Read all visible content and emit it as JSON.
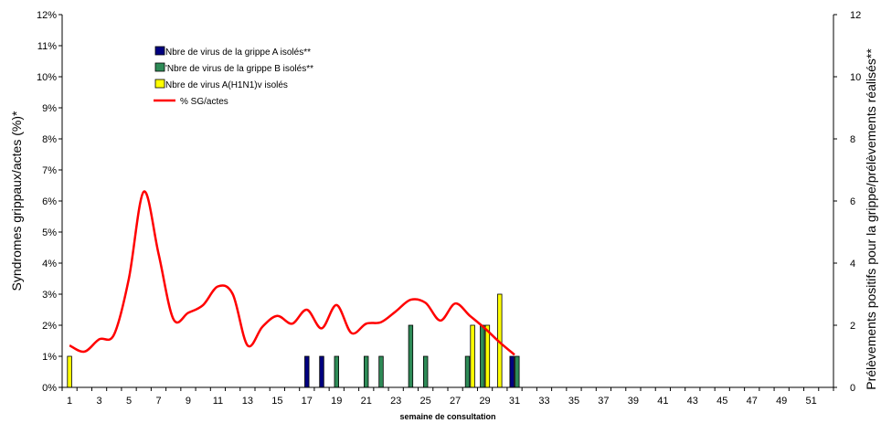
{
  "chart_data": {
    "type": "bar",
    "xlabel": "semaine de consultation",
    "ylabel_left": "Syndromes grippaux/actes (%)*",
    "ylabel_right": "Prélèvements positifs pour la grippe/prélèvements réalisés**",
    "x_min": 1,
    "x_max": 52,
    "x_tick_values": [
      1,
      3,
      5,
      7,
      9,
      11,
      13,
      15,
      17,
      19,
      21,
      23,
      25,
      27,
      29,
      31,
      33,
      35,
      37,
      39,
      41,
      43,
      45,
      47,
      49,
      51
    ],
    "x_tick_labels": [
      "1",
      "3",
      "5",
      "7",
      "9",
      "11",
      "13",
      "15",
      "17",
      "19",
      "21",
      "23",
      "25",
      "27",
      "29",
      "31",
      "33",
      "35",
      "37",
      "39",
      "41",
      "43",
      "45",
      "47",
      "49",
      "51"
    ],
    "ylim_left": [
      0,
      12
    ],
    "yticks_left": [
      "0%",
      "1%",
      "2%",
      "3%",
      "4%",
      "5%",
      "6%",
      "7%",
      "8%",
      "9%",
      "10%",
      "11%",
      "12%"
    ],
    "ylim_right": [
      0,
      12
    ],
    "yticks_right": [
      "0",
      "2",
      "4",
      "6",
      "8",
      "10",
      "12"
    ],
    "legend_position": "top-left",
    "series": [
      {
        "name": "Nbre de virus de la grippe A  isolés**",
        "kind": "bar",
        "axis": "right",
        "color": "#000080",
        "points": [
          [
            17,
            1
          ],
          [
            18,
            1
          ],
          [
            31,
            1
          ]
        ]
      },
      {
        "name": "'Nbre de virus de la grippe B isolés**",
        "kind": "bar",
        "axis": "right",
        "color": "#2e8b57",
        "points": [
          [
            19,
            1
          ],
          [
            21,
            1
          ],
          [
            22,
            1
          ],
          [
            24,
            2
          ],
          [
            25,
            1
          ],
          [
            28,
            1
          ],
          [
            29,
            2
          ],
          [
            31,
            1
          ]
        ]
      },
      {
        "name": "Nbre de virus A(H1N1)v isolés",
        "kind": "bar",
        "axis": "right",
        "color": "#ffff00",
        "points": [
          [
            1,
            1
          ],
          [
            28,
            2
          ],
          [
            29,
            2
          ],
          [
            30,
            3
          ]
        ]
      },
      {
        "name": "% SG/actes",
        "kind": "line",
        "axis": "left",
        "color": "#ff0000",
        "points": [
          [
            1,
            1.35
          ],
          [
            2,
            1.15
          ],
          [
            3,
            1.55
          ],
          [
            4,
            1.7
          ],
          [
            5,
            3.5
          ],
          [
            6,
            6.3
          ],
          [
            7,
            4.3
          ],
          [
            8,
            2.2
          ],
          [
            9,
            2.4
          ],
          [
            10,
            2.65
          ],
          [
            11,
            3.25
          ],
          [
            12,
            3.0
          ],
          [
            13,
            1.35
          ],
          [
            14,
            1.95
          ],
          [
            15,
            2.3
          ],
          [
            16,
            2.05
          ],
          [
            17,
            2.5
          ],
          [
            18,
            1.9
          ],
          [
            19,
            2.65
          ],
          [
            20,
            1.75
          ],
          [
            21,
            2.05
          ],
          [
            22,
            2.1
          ],
          [
            23,
            2.45
          ],
          [
            24,
            2.82
          ],
          [
            25,
            2.72
          ],
          [
            26,
            2.15
          ],
          [
            27,
            2.7
          ],
          [
            28,
            2.3
          ],
          [
            29,
            1.9
          ],
          [
            30,
            1.45
          ],
          [
            31,
            1.05
          ]
        ]
      }
    ]
  }
}
